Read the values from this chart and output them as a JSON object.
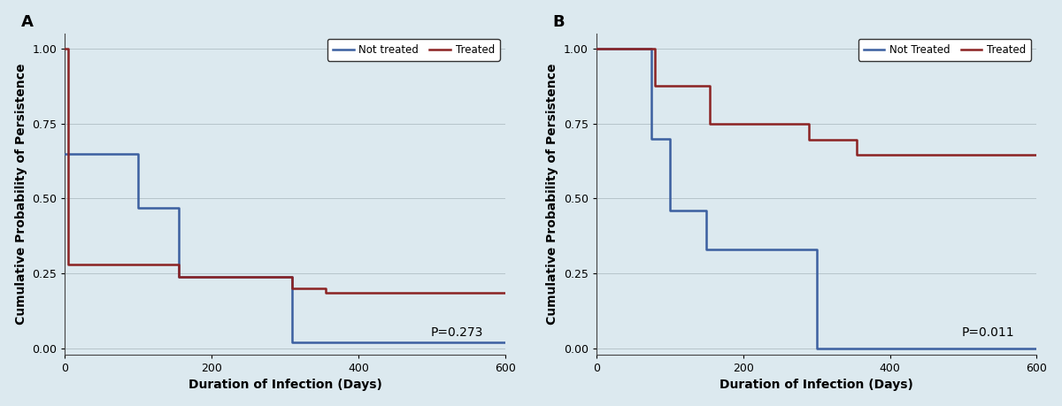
{
  "panel_A": {
    "title": "A",
    "xlabel": "Duration of Infection (Days)",
    "ylabel": "Cumulative Probability of Persistence",
    "pvalue": "P=0.273",
    "xlim": [
      0,
      600
    ],
    "ylim": [
      -0.02,
      1.05
    ],
    "xticks": [
      0,
      200,
      400,
      600
    ],
    "yticks": [
      0.0,
      0.25,
      0.5,
      0.75,
      1.0
    ],
    "not_treated": {
      "x": [
        0,
        75,
        100,
        155,
        310,
        600
      ],
      "y": [
        0.65,
        0.65,
        0.47,
        0.24,
        0.02,
        0.02
      ],
      "color": "#3B5FA0",
      "label": "Not treated"
    },
    "treated": {
      "x": [
        0,
        5,
        75,
        155,
        310,
        355,
        600
      ],
      "y": [
        1.0,
        0.28,
        0.28,
        0.24,
        0.2,
        0.185,
        0.185
      ],
      "color": "#8B2222",
      "label": "Treated"
    }
  },
  "panel_B": {
    "title": "B",
    "xlabel": "Duration of Infection (Days)",
    "ylabel": "Cumulative Probability of Persistence",
    "pvalue": "P=0.011",
    "xlim": [
      0,
      600
    ],
    "ylim": [
      -0.02,
      1.05
    ],
    "xticks": [
      0,
      200,
      400,
      600
    ],
    "yticks": [
      0.0,
      0.25,
      0.5,
      0.75,
      1.0
    ],
    "not_treated": {
      "x": [
        0,
        75,
        100,
        150,
        300,
        600
      ],
      "y": [
        1.0,
        0.7,
        0.46,
        0.33,
        0.0,
        0.0
      ],
      "color": "#3B5FA0",
      "label": "Not Treated"
    },
    "treated": {
      "x": [
        0,
        80,
        155,
        290,
        355,
        600
      ],
      "y": [
        1.0,
        0.875,
        0.75,
        0.695,
        0.645,
        0.645
      ],
      "color": "#8B2222",
      "label": "Treated"
    }
  },
  "background_color": "#DCE9EF",
  "plot_bg_color": "#DCE9EF",
  "grid_color": "#B0BEC5",
  "line_width": 1.8,
  "font_size_label": 10,
  "font_size_tick": 9,
  "font_size_pvalue": 10,
  "font_size_title": 13
}
